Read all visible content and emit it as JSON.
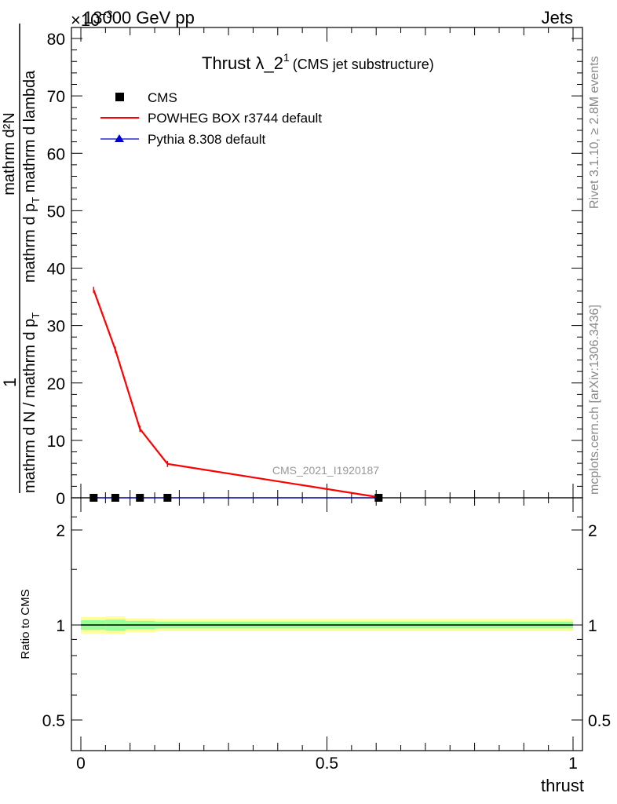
{
  "header": {
    "left": "13000 GeV pp",
    "right": "Jets",
    "exponent_prefix": "×10",
    "exponent": "−3"
  },
  "plot_title": {
    "main": "Thrust λ_2",
    "superscript": "1",
    "suffix": "(CMS jet substructure)"
  },
  "y_axis_label": {
    "numerator": "mathrm d²N",
    "denominator_main": "mathrm d N / mathrm d p",
    "denominator_mid": "mathrm d p",
    "denominator_sub": "T",
    "denominator_tail": " mathrm d lambda",
    "prefix": "1"
  },
  "side_text": {
    "top": "Rivet 3.1.10, ≥ 2.8M events",
    "bottom": "mcplots.cern.ch [arXiv:1306.3436]"
  },
  "watermark": "CMS_2021_I1920187",
  "legend": [
    {
      "label": "CMS",
      "marker": "square",
      "color": "#000000"
    },
    {
      "label": "POWHEG BOX r3744 default",
      "marker": "line",
      "color": "#ff0000"
    },
    {
      "label": "Pythia 8.308 default",
      "marker": "triangle",
      "color": "#0000cc"
    }
  ],
  "ratio_label": "Ratio to CMS",
  "x_axis_label": "thrust",
  "colors": {
    "data": "#000000",
    "powheg": "#ff0000",
    "pythia": "#0000cc",
    "band_outer": "#ffff99",
    "band_inner": "#99ff99"
  },
  "chart_data": {
    "type": "line",
    "xlabel": "thrust",
    "ylabel": "1/(mathrm d N / mathrm d p_T) mathrm d²N/(mathrm d p_T mathrm d lambda)",
    "xlim": [
      0,
      1
    ],
    "ylim": [
      0,
      80
    ],
    "y_scale_factor": "×10^-3",
    "x_ticks": [
      0,
      0.5,
      1
    ],
    "x_tick_labels": [
      "0",
      "0.5",
      "1"
    ],
    "y_ticks": [
      0,
      10,
      20,
      30,
      40,
      50,
      60,
      70,
      80
    ],
    "y_tick_labels": [
      "0",
      "10",
      "20",
      "30",
      "40",
      "50",
      "60",
      "70",
      "80"
    ],
    "series": [
      {
        "name": "CMS",
        "style": "markers",
        "x": [
          0.026,
          0.07,
          0.12,
          0.176,
          0.605
        ],
        "y": [
          0.0,
          0.0,
          0.0,
          0.0,
          0.0
        ]
      },
      {
        "name": "POWHEG BOX r3744 default",
        "style": "line",
        "x": [
          0.026,
          0.07,
          0.12,
          0.176,
          0.605
        ],
        "y": [
          36.2,
          25.8,
          12.0,
          5.9,
          0.1
        ]
      },
      {
        "name": "Pythia 8.308 default",
        "style": "line",
        "x": [
          0.026,
          0.07,
          0.12,
          0.176,
          0.605
        ],
        "y": [
          0.0,
          0.0,
          0.0,
          0.0,
          0.0
        ]
      }
    ],
    "ratio_panel": {
      "ylabel": "Ratio to CMS",
      "ylim": [
        0.4,
        2.3
      ],
      "y_ticks": [
        0.5,
        1,
        2
      ],
      "y_tick_labels": [
        "0.5",
        "1",
        "2"
      ],
      "x_bin_edges": [
        0.0,
        0.05,
        0.09,
        0.15,
        1.0
      ],
      "band_outer_half_width": [
        0.06,
        0.065,
        0.05,
        0.045
      ],
      "band_inner_half_width": [
        0.035,
        0.04,
        0.03,
        0.025
      ],
      "ratio_value": 1.0
    }
  }
}
